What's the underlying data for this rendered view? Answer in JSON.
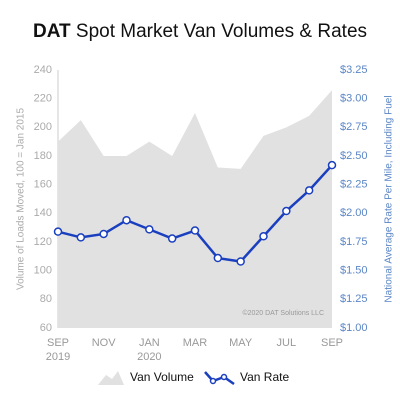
{
  "chart_data": {
    "type": "combo",
    "title_brand": "DAT",
    "title": "Spot Market Van Volumes & Rates",
    "categories": [
      "SEP",
      null,
      "NOV",
      null,
      "JAN",
      null,
      "MAR",
      null,
      "MAY",
      null,
      "JUL",
      null,
      "SEP"
    ],
    "year_labels": [
      "2019",
      null,
      null,
      null,
      "2020",
      null,
      null,
      null,
      null,
      null,
      null,
      null,
      null
    ],
    "ylabel": "Volume of Loads Moved, 100 = Jan 2015",
    "y2label": "National Average Rate Per Mile, Including Fuel",
    "ylim": [
      60,
      240
    ],
    "yticks": [
      60,
      80,
      100,
      120,
      140,
      160,
      180,
      200,
      220,
      240
    ],
    "y2lim": [
      1.0,
      3.25
    ],
    "y2ticks": [
      {
        "value": 1.0,
        "label": "$1.00"
      },
      {
        "value": 1.25,
        "label": "$1.25"
      },
      {
        "value": 1.5,
        "label": "$1.50"
      },
      {
        "value": 1.75,
        "label": "$1.75"
      },
      {
        "value": 2.0,
        "label": "$2.00"
      },
      {
        "value": 2.25,
        "label": "$2.25"
      },
      {
        "value": 2.5,
        "label": "$2.50"
      },
      {
        "value": 2.75,
        "label": "$2.75"
      },
      {
        "value": 3.0,
        "label": "$3.00"
      },
      {
        "value": 3.25,
        "label": "$3.25"
      }
    ],
    "annotation": "©2020 DAT Solutions LLC",
    "series": [
      {
        "name": "Van Volume",
        "type": "area",
        "axis": "y",
        "color": "#e1e1e1",
        "values": [
          190,
          205,
          180,
          180,
          190,
          180,
          210,
          172,
          171,
          194,
          200,
          208,
          226
        ]
      },
      {
        "name": "Van Rate",
        "type": "line",
        "axis": "y2",
        "color": "#1a3fbf",
        "values": [
          1.84,
          1.79,
          1.82,
          1.94,
          1.86,
          1.78,
          1.85,
          1.61,
          1.58,
          1.8,
          2.02,
          2.2,
          2.42
        ]
      }
    ]
  }
}
